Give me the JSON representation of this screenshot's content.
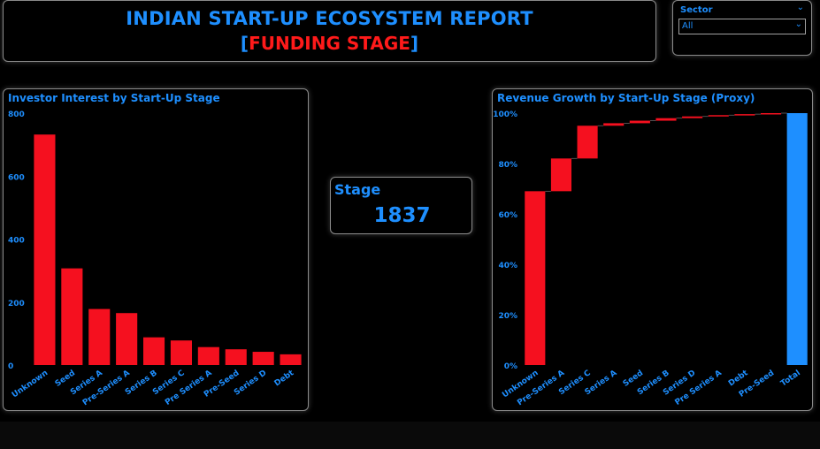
{
  "header": {
    "title": "INDIAN START-UP ECOSYSTEM REPORT",
    "subtitle_bracket_open": "[",
    "subtitle": "FUNDING STAGE",
    "subtitle_bracket_close": "]"
  },
  "slicer": {
    "label": "Sector",
    "selected": "All",
    "collapse_icon": "chevron-down-icon",
    "dropdown_icon": "chevron-down-icon"
  },
  "kpi": {
    "label": "Stage",
    "value": "1837"
  },
  "colors": {
    "accent": "#1e8fff",
    "bar": "#f5101f",
    "total": "#1e8fff"
  },
  "chart_data": [
    {
      "type": "bar",
      "title": "Investor Interest by Start-Up Stage",
      "categories": [
        "Unknown",
        "Seed",
        "Series A",
        "Pre-Series A",
        "Series B",
        "Series C",
        "Pre Series A",
        "Pre-Seed",
        "Series D",
        "Debt"
      ],
      "values": [
        732,
        307,
        178,
        165,
        88,
        78,
        57,
        50,
        42,
        34
      ],
      "yticks": [
        "0",
        "200",
        "400",
        "600",
        "800"
      ],
      "ylim": [
        0,
        800
      ],
      "grid": false
    },
    {
      "type": "waterfall",
      "title": "Revenue Growth by Start-Up Stage (Proxy)",
      "categories": [
        "Unknown",
        "Pre-Series A",
        "Series C",
        "Series A",
        "Seed",
        "Series B",
        "Series D",
        "Pre Series A",
        "Debt",
        "Pre-Seed",
        "Total"
      ],
      "cumulative_start": [
        0,
        69,
        82,
        95,
        96,
        97,
        98,
        98.7,
        99.2,
        99.6,
        0
      ],
      "cumulative_end": [
        69,
        82,
        95,
        96,
        97,
        98,
        98.7,
        99.2,
        99.6,
        100,
        100
      ],
      "yticks": [
        "0%",
        "20%",
        "40%",
        "60%",
        "80%",
        "100%"
      ],
      "ylim": [
        0,
        100
      ],
      "grid": false
    }
  ]
}
